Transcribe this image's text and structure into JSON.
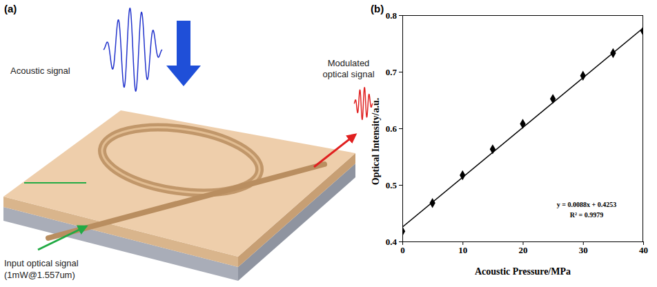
{
  "diagram": {
    "panels": [
      "(a)",
      "(b)"
    ],
    "acoustic_signal": "Acoustic signal",
    "modulated_signal": [
      "Modulated",
      "optical signal"
    ],
    "input_signal": [
      "Input optical signal",
      "(1mW@1.557um)"
    ]
  },
  "chart_data": {
    "type": "scatter",
    "x_label": "Acoustic Pressure/MPa",
    "y_label": "Optical Intensity/a.u.",
    "x": [
      0,
      5,
      10,
      15,
      20,
      25,
      30,
      35,
      40
    ],
    "series": [
      {
        "type": "scatter",
        "marker": "diamond",
        "color": "#000000",
        "values": [
          0.418,
          0.468,
          0.517,
          0.563,
          0.608,
          0.652,
          0.693,
          0.733,
          0.772
        ]
      },
      {
        "type": "line",
        "line_style": "solid",
        "color": "#000000",
        "x": [
          0,
          40
        ],
        "values": [
          0.4253,
          0.7773
        ]
      }
    ],
    "annotations": [
      "y = 0.0088x + 0.4253",
      "R² = 0.9979"
    ],
    "xlim": [
      0,
      40
    ],
    "xticks": [
      0,
      10,
      20,
      30,
      40
    ],
    "ylim": [
      0.4,
      0.8
    ],
    "yticks": [
      0.4,
      0.5,
      0.6,
      0.7,
      0.8
    ],
    "grid": false
  }
}
